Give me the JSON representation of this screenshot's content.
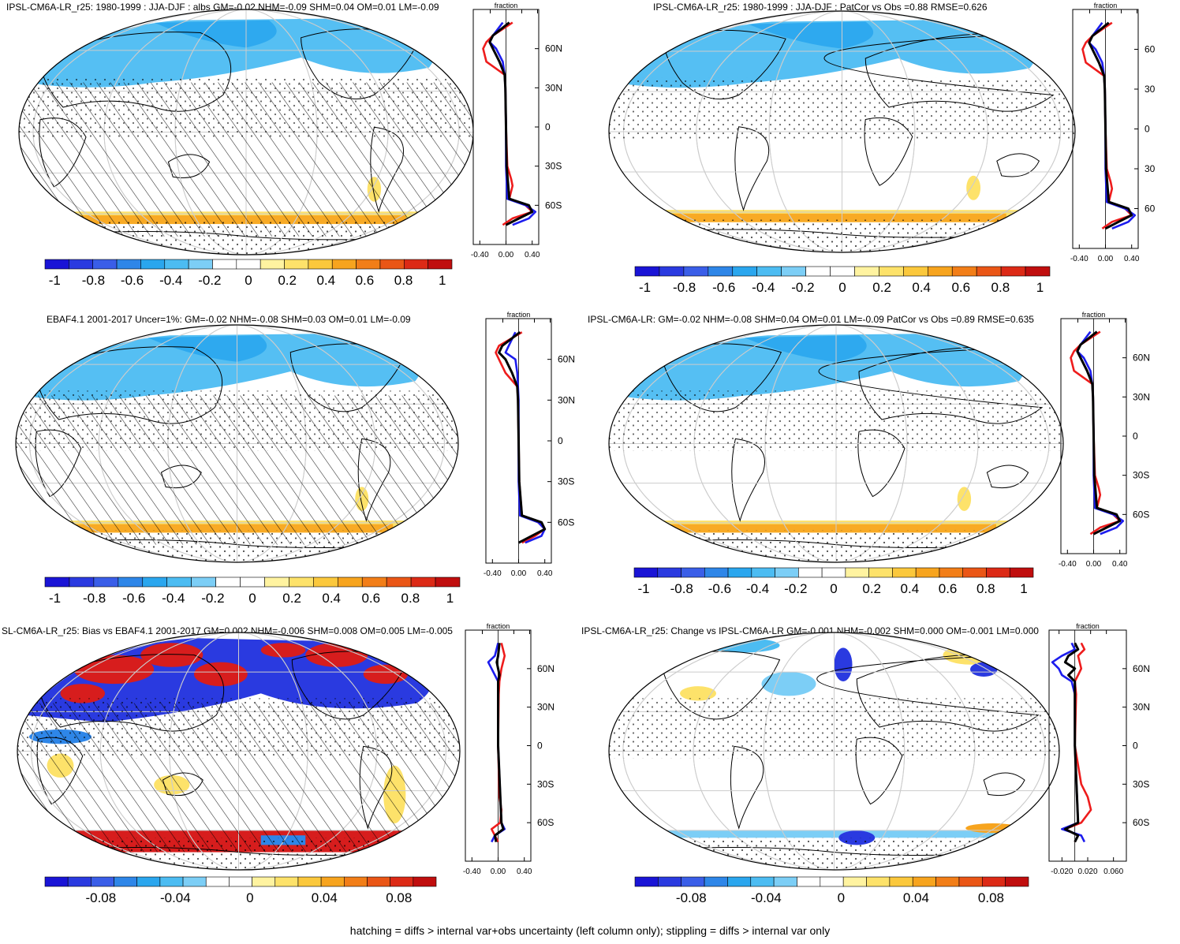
{
  "footnote": "hatching = diffs > internal var+obs uncertainty (left column only); stippling = diffs > internal var only",
  "colors": {
    "palette": [
      "#1a14d6",
      "#2a3ae0",
      "#3a5ee8",
      "#2e86e8",
      "#2aa6ee",
      "#4cbcf2",
      "#7ccef6",
      "#ffffff",
      "#ffffff",
      "#fff3a0",
      "#fde26a",
      "#fbc83c",
      "#f7a41e",
      "#f27e18",
      "#ea5616",
      "#dc2a16",
      "#c00e0e"
    ],
    "land_blue": "#4cbcf2",
    "deep_blue": "#2a3ae0",
    "red": "#d71d1d",
    "orange": "#f7a41e",
    "yellow": "#fde26a",
    "series_red": "#ee1c1c",
    "series_blue": "#1c1cee",
    "series_black": "#000000"
  },
  "panels": [
    {
      "id": "p1",
      "title": "IPSL-CM6A-LR_r25: 1980-1999 : JJA-DJF : albs GM=-0.02 NHM=-0.09 SHM=0.04 OM=0.01 LM=-0.09",
      "hatched": true,
      "colorbar_labels": [
        "-1",
        "-0.8",
        "-0.6",
        "-0.4",
        "-0.2",
        "0",
        "0.2",
        "0.4",
        "0.6",
        "0.8",
        "1"
      ],
      "profile": {
        "top_label": "fraction",
        "xticks": [
          "-0.40",
          "0.00",
          "0.40"
        ],
        "yticks": [
          "60N",
          "30N",
          "0",
          "30S",
          "60S"
        ]
      }
    },
    {
      "id": "p2",
      "title": "IPSL-CM6A-LR_r25: 1980-1999 : JJA-DJF : PatCor vs Obs =0.88 RMSE=0.626",
      "hatched": false,
      "colorbar_labels": [
        "-1",
        "-0.8",
        "-0.6",
        "-0.4",
        "-0.2",
        "0",
        "0.2",
        "0.4",
        "0.6",
        "0.8",
        "1"
      ],
      "profile": {
        "top_label": "fraction",
        "xticks": [
          "-0.40",
          "0.00",
          "0.40"
        ],
        "yticks": [
          "60",
          "30",
          "0",
          "30",
          "60"
        ]
      }
    },
    {
      "id": "p3",
      "title": "EBAF4.1 2001-2017 Uncer=1%: GM=-0.02 NHM=-0.08 SHM=0.03 OM=0.01 LM=-0.09",
      "hatched": true,
      "colorbar_labels": [
        "-1",
        "-0.8",
        "-0.6",
        "-0.4",
        "-0.2",
        "0",
        "0.2",
        "0.4",
        "0.6",
        "0.8",
        "1"
      ],
      "profile": {
        "top_label": "fraction",
        "xticks": [
          "-0.40",
          "0.00",
          "0.40"
        ],
        "yticks": [
          "60N",
          "30N",
          "0",
          "30S",
          "60S"
        ]
      }
    },
    {
      "id": "p4",
      "title": "IPSL-CM6A-LR: GM=-0.02 NHM=-0.08 SHM=0.04 OM=0.01 LM=-0.09 PatCor vs Obs =0.89 RMSE=0.635",
      "hatched": false,
      "colorbar_labels": [
        "-1",
        "-0.8",
        "-0.6",
        "-0.4",
        "-0.2",
        "0",
        "0.2",
        "0.4",
        "0.6",
        "0.8",
        "1"
      ],
      "profile": {
        "top_label": "fraction",
        "xticks": [
          "-0.40",
          "0.00",
          "0.40"
        ],
        "yticks": [
          "60N",
          "30N",
          "0",
          "30S",
          "60S"
        ]
      }
    },
    {
      "id": "p5",
      "title": "SL-CM6A-LR_r25: Bias vs EBAF4.1 2001-2017 GM=0.002 NHM=-0.006 SHM=0.008 OM=0.005 LM=-0.005",
      "hatched": true,
      "colorbar_labels": [
        "-0.08",
        "-0.04",
        "0",
        "0.04",
        "0.08"
      ],
      "profile": {
        "top_label": "fraction",
        "xticks": [
          "-0.40",
          "0.00",
          "0.40"
        ],
        "yticks": [
          "60N",
          "30N",
          "0",
          "30S",
          "60S"
        ]
      }
    },
    {
      "id": "p6",
      "title": "IPSL-CM6A-LR_r25: Change vs IPSL-CM6A-LR GM=-0.001 NHM=-0.002 SHM=0.000 OM=-0.001 LM=0.000",
      "hatched": false,
      "colorbar_labels": [
        "-0.08",
        "-0.04",
        "0",
        "0.04",
        "0.08"
      ],
      "profile": {
        "top_label": "fraction",
        "xticks": [
          "-0.020",
          "0.020",
          "0.060"
        ],
        "yticks": [
          "60N",
          "30N",
          "0",
          "30S",
          "60S"
        ]
      }
    }
  ],
  "chart_data": [
    {
      "type": "heatmap",
      "title": "IPSL-CM6A-LR_r25: 1980-1999 : JJA-DJF : albs GM=-0.02 NHM=-0.09 SHM=0.04 OM=0.01 LM=-0.09",
      "zlim": [
        -1.05,
        1.05
      ],
      "colorbar_ticks": [
        -1,
        -0.8,
        -0.6,
        -0.4,
        -0.2,
        0,
        0.2,
        0.4,
        0.6,
        0.8,
        1
      ]
    },
    {
      "type": "line",
      "title": "zonal mean fraction (panel 1)",
      "xlim": [
        -0.5,
        0.5
      ],
      "ylim": [
        -90,
        90
      ],
      "series": [
        {
          "name": "red",
          "lat": [
            80,
            70,
            65,
            60,
            50,
            40,
            30,
            0,
            -30,
            -40,
            -45,
            -55,
            -60,
            -65,
            -70,
            -75
          ],
          "values": [
            0.1,
            -0.2,
            -0.3,
            -0.35,
            -0.3,
            -0.02,
            -0.01,
            0,
            0.02,
            0.08,
            0.1,
            0.05,
            0.3,
            0.4,
            0.1,
            -0.05
          ]
        },
        {
          "name": "blue",
          "lat": [
            80,
            70,
            65,
            60,
            50,
            40,
            30,
            0,
            -30,
            -55,
            -60,
            -65,
            -70,
            -75
          ],
          "values": [
            -0.05,
            -0.2,
            -0.25,
            -0.15,
            -0.05,
            -0.02,
            -0.01,
            0,
            0,
            0.02,
            0.3,
            0.45,
            0.35,
            0.1
          ]
        },
        {
          "name": "black",
          "lat": [
            80,
            70,
            65,
            60,
            50,
            40,
            30,
            0,
            -30,
            -55,
            -60,
            -65,
            -70,
            -75
          ],
          "values": [
            0.05,
            -0.2,
            -0.25,
            -0.2,
            -0.1,
            -0.02,
            -0.01,
            0,
            0.01,
            0.05,
            0.35,
            0.4,
            0.2,
            0
          ]
        }
      ]
    },
    {
      "type": "heatmap",
      "title": "IPSL-CM6A-LR_r25: 1980-1999 : JJA-DJF : PatCor vs Obs =0.88 RMSE=0.626",
      "zlim": [
        -1.05,
        1.05
      ],
      "colorbar_ticks": [
        -1,
        -0.8,
        -0.6,
        -0.4,
        -0.2,
        0,
        0.2,
        0.4,
        0.6,
        0.8,
        1
      ]
    },
    {
      "type": "line",
      "title": "zonal mean fraction (panel 2)",
      "xlim": [
        -0.5,
        0.5
      ],
      "ylim": [
        -90,
        90
      ],
      "series": [
        {
          "name": "red",
          "lat": [
            80,
            70,
            65,
            60,
            50,
            40,
            30,
            0,
            -30,
            -40,
            -45,
            -55,
            -60,
            -65,
            -70,
            -75
          ],
          "values": [
            0.1,
            -0.2,
            -0.3,
            -0.35,
            -0.3,
            -0.02,
            -0.01,
            0,
            0.02,
            0.08,
            0.1,
            0.05,
            0.3,
            0.4,
            0.1,
            -0.05
          ]
        },
        {
          "name": "blue",
          "lat": [
            80,
            70,
            65,
            60,
            50,
            40,
            30,
            0,
            -30,
            -55,
            -60,
            -65,
            -70,
            -75
          ],
          "values": [
            -0.05,
            -0.2,
            -0.25,
            -0.15,
            -0.05,
            -0.02,
            -0.01,
            0,
            0,
            0.02,
            0.3,
            0.45,
            0.35,
            0.1
          ]
        },
        {
          "name": "black",
          "lat": [
            80,
            70,
            65,
            60,
            50,
            40,
            30,
            0,
            -30,
            -55,
            -60,
            -65,
            -70,
            -75
          ],
          "values": [
            0.05,
            -0.2,
            -0.25,
            -0.2,
            -0.1,
            -0.02,
            -0.01,
            0,
            0.01,
            0.05,
            0.35,
            0.4,
            0.2,
            0
          ]
        }
      ]
    },
    {
      "type": "heatmap",
      "title": "EBAF4.1 2001-2017 Uncer=1%: GM=-0.02 NHM=-0.08 SHM=0.03 OM=0.01 LM=-0.09",
      "zlim": [
        -1.05,
        1.05
      ],
      "colorbar_ticks": [
        -1,
        -0.8,
        -0.6,
        -0.4,
        -0.2,
        0,
        0.2,
        0.4,
        0.6,
        0.8,
        1
      ]
    },
    {
      "type": "line",
      "title": "zonal mean fraction (panel 3)",
      "xlim": [
        -0.5,
        0.5
      ],
      "ylim": [
        -90,
        90
      ],
      "series": [
        {
          "name": "red",
          "lat": [
            80,
            70,
            65,
            60,
            50,
            40,
            30,
            0,
            -30,
            -55,
            -60,
            -65,
            -70,
            -75
          ],
          "values": [
            0.05,
            -0.3,
            -0.35,
            -0.3,
            -0.2,
            -0.02,
            -0.01,
            0,
            0.01,
            0.05,
            0.3,
            0.4,
            0.25,
            0.05
          ]
        },
        {
          "name": "blue",
          "lat": [
            80,
            70,
            65,
            60,
            50,
            40,
            30,
            0,
            -30,
            -55,
            -60,
            -65,
            -70,
            -75
          ],
          "values": [
            -0.05,
            -0.15,
            -0.2,
            -0.05,
            -0.02,
            -0.01,
            0,
            0,
            0,
            0.02,
            0.3,
            0.4,
            0.35,
            0.1
          ]
        },
        {
          "name": "black",
          "lat": [
            80,
            70,
            65,
            60,
            50,
            40,
            30,
            0,
            -30,
            -55,
            -60,
            -65,
            -70,
            -75
          ],
          "values": [
            0.02,
            -0.25,
            -0.3,
            -0.2,
            -0.1,
            -0.02,
            -0.01,
            0,
            0.01,
            0.05,
            0.35,
            0.4,
            0.2,
            0
          ]
        }
      ]
    },
    {
      "type": "heatmap",
      "title": "IPSL-CM6A-LR: GM=-0.02 NHM=-0.08 SHM=0.04 OM=0.01 LM=-0.09 PatCor vs Obs =0.89 RMSE=0.635",
      "zlim": [
        -1.05,
        1.05
      ],
      "colorbar_ticks": [
        -1,
        -0.8,
        -0.6,
        -0.4,
        -0.2,
        0,
        0.2,
        0.4,
        0.6,
        0.8,
        1
      ]
    },
    {
      "type": "line",
      "title": "zonal mean fraction (panel 4)",
      "xlim": [
        -0.5,
        0.5
      ],
      "ylim": [
        -90,
        90
      ],
      "series": [
        {
          "name": "red",
          "lat": [
            80,
            70,
            65,
            60,
            50,
            40,
            30,
            0,
            -30,
            -40,
            -45,
            -55,
            -60,
            -65,
            -70,
            -75
          ],
          "values": [
            0.1,
            -0.2,
            -0.3,
            -0.35,
            -0.3,
            -0.02,
            -0.01,
            0,
            0.02,
            0.08,
            0.1,
            0.05,
            0.3,
            0.4,
            0.1,
            -0.05
          ]
        },
        {
          "name": "blue",
          "lat": [
            80,
            70,
            65,
            60,
            50,
            40,
            30,
            0,
            -30,
            -55,
            -60,
            -65,
            -70,
            -75
          ],
          "values": [
            -0.05,
            -0.2,
            -0.25,
            -0.15,
            -0.05,
            -0.02,
            -0.01,
            0,
            0,
            0.02,
            0.3,
            0.45,
            0.35,
            0.1
          ]
        },
        {
          "name": "black",
          "lat": [
            80,
            70,
            65,
            60,
            50,
            40,
            30,
            0,
            -30,
            -55,
            -60,
            -65,
            -70,
            -75
          ],
          "values": [
            0.05,
            -0.2,
            -0.25,
            -0.2,
            -0.1,
            -0.02,
            -0.01,
            0,
            0.01,
            0.05,
            0.35,
            0.4,
            0.2,
            0
          ]
        }
      ]
    },
    {
      "type": "heatmap",
      "title": "SL-CM6A-LR_r25: Bias vs EBAF4.1 2001-2017 GM=0.002 NHM=-0.006 SHM=0.008 OM=0.005 LM=-0.005",
      "zlim": [
        -0.105,
        0.105
      ],
      "colorbar_ticks": [
        -0.08,
        -0.04,
        0,
        0.04,
        0.08
      ]
    },
    {
      "type": "line",
      "title": "zonal mean fraction (panel 5)",
      "xlim": [
        -0.5,
        0.5
      ],
      "ylim": [
        -90,
        90
      ],
      "series": [
        {
          "name": "red",
          "lat": [
            80,
            70,
            60,
            50,
            40,
            0,
            -40,
            -50,
            -60,
            -65,
            -70,
            -75
          ],
          "values": [
            0.05,
            0.1,
            0.05,
            0.02,
            0.01,
            0,
            0.02,
            0.05,
            0.03,
            -0.1,
            -0.05,
            0
          ]
        },
        {
          "name": "blue",
          "lat": [
            80,
            70,
            65,
            60,
            55,
            50,
            0,
            -60,
            -65,
            -70,
            -75
          ],
          "values": [
            0,
            -0.05,
            -0.15,
            -0.1,
            -0.05,
            0,
            0,
            0.05,
            0.1,
            -0.05,
            -0.1
          ]
        },
        {
          "name": "black",
          "lat": [
            80,
            70,
            65,
            60,
            55,
            50,
            0,
            -60,
            -65,
            -70,
            -75
          ],
          "values": [
            0.02,
            0,
            -0.02,
            0,
            0.02,
            0,
            0,
            0.05,
            0.08,
            -0.05,
            -0.03
          ]
        }
      ]
    },
    {
      "type": "heatmap",
      "title": "IPSL-CM6A-LR_r25: Change vs IPSL-CM6A-LR GM=-0.001 NHM=-0.002 SHM=0.000 OM=-0.001 LM=0.000",
      "zlim": [
        -0.105,
        0.105
      ],
      "colorbar_ticks": [
        -0.08,
        -0.04,
        0,
        0.04,
        0.08
      ]
    },
    {
      "type": "line",
      "title": "zonal mean fraction (panel 6)",
      "xlim": [
        -0.04,
        0.08
      ],
      "ylim": [
        -90,
        90
      ],
      "series": [
        {
          "name": "red",
          "lat": [
            80,
            75,
            70,
            60,
            55,
            50,
            40,
            0,
            -30,
            -40,
            -50,
            -60,
            -65,
            -70,
            -75
          ],
          "values": [
            0.01,
            0.015,
            0.005,
            0.01,
            0.005,
            0,
            0.002,
            0,
            0.01,
            0.02,
            0.025,
            0.01,
            -0.015,
            0.005,
            0
          ]
        },
        {
          "name": "blue",
          "lat": [
            80,
            75,
            70,
            65,
            60,
            55,
            50,
            40,
            0,
            -60,
            -65,
            -70,
            -75
          ],
          "values": [
            -0.005,
            0,
            -0.02,
            -0.035,
            -0.025,
            -0.02,
            -0.005,
            0,
            0,
            0.005,
            -0.02,
            0.01,
            0.015
          ]
        },
        {
          "name": "black",
          "lat": [
            80,
            75,
            70,
            65,
            60,
            55,
            50,
            40,
            0,
            -60,
            -65,
            -70,
            -75
          ],
          "values": [
            0,
            0.005,
            -0.01,
            -0.015,
            0,
            -0.01,
            0,
            0,
            0,
            0.005,
            -0.015,
            0.005,
            0
          ]
        }
      ]
    }
  ]
}
